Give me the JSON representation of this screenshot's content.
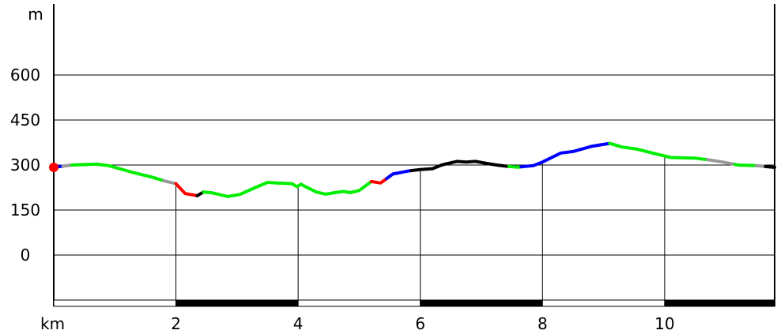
{
  "chart_data": {
    "type": "line",
    "title": "",
    "xlabel": "km",
    "ylabel": "m",
    "xlim": [
      0,
      11.8
    ],
    "ylim": [
      -160,
      800
    ],
    "grid": true,
    "x_ticks": [
      2,
      4,
      6,
      8,
      10
    ],
    "y_ticks": [
      0,
      150,
      300,
      450,
      600
    ],
    "x_tick_labels": [
      "2",
      "4",
      "6",
      "8",
      "10"
    ],
    "y_tick_labels": [
      "0",
      "150",
      "300",
      "450",
      "600"
    ],
    "start_marker_color": "#ff0000",
    "km_bar_colors": [
      "#ffffff",
      "#000000"
    ],
    "series": [
      {
        "values_x": [
          0,
          0.1,
          0.3,
          0.7,
          0.9,
          1.3,
          1.6,
          1.85,
          2.0,
          2.15,
          2.35,
          2.45,
          2.6,
          2.85,
          3.05,
          3.3,
          3.5,
          3.65,
          3.9,
          3.98,
          4.05,
          4.1,
          4.3,
          4.45,
          4.6,
          4.75,
          4.85,
          5.0,
          5.2,
          5.35,
          5.45,
          5.55,
          5.8,
          6.0,
          6.2,
          6.35,
          6.45,
          6.6,
          6.75,
          6.9,
          7.1,
          7.25,
          7.45,
          7.6,
          7.85,
          8.0,
          8.3,
          8.5,
          8.8,
          9.1,
          9.3,
          9.55,
          9.8,
          10.1,
          10.5,
          10.7,
          10.95,
          11.2,
          11.5,
          11.8
        ],
        "values_y": [
          292,
          295,
          300,
          303,
          298,
          275,
          260,
          245,
          238,
          205,
          198,
          210,
          207,
          195,
          202,
          225,
          242,
          240,
          238,
          228,
          236,
          230,
          210,
          203,
          208,
          212,
          208,
          215,
          245,
          240,
          255,
          270,
          280,
          285,
          288,
          300,
          305,
          312,
          310,
          312,
          305,
          300,
          295,
          293,
          298,
          310,
          340,
          345,
          362,
          372,
          360,
          353,
          340,
          325,
          323,
          318,
          310,
          300,
          298,
          292
        ]
      }
    ],
    "segments": [
      {
        "from": 0,
        "to": 0.15,
        "color": "#0000ff"
      },
      {
        "from": 0.15,
        "to": 0.3,
        "color": "#999999"
      },
      {
        "from": 0.3,
        "to": 1.8,
        "color": "#00ee00"
      },
      {
        "from": 1.8,
        "to": 2.0,
        "color": "#999999"
      },
      {
        "from": 2.0,
        "to": 2.35,
        "color": "#ff0000"
      },
      {
        "from": 2.35,
        "to": 2.45,
        "color": "#000000"
      },
      {
        "from": 2.45,
        "to": 5.2,
        "color": "#00ee00"
      },
      {
        "from": 5.2,
        "to": 5.45,
        "color": "#ff0000"
      },
      {
        "from": 5.45,
        "to": 5.85,
        "color": "#0000ff"
      },
      {
        "from": 5.85,
        "to": 7.45,
        "color": "#000000"
      },
      {
        "from": 7.45,
        "to": 7.65,
        "color": "#00ee00"
      },
      {
        "from": 7.65,
        "to": 9.1,
        "color": "#0000ff"
      },
      {
        "from": 9.1,
        "to": 10.7,
        "color": "#00ee00"
      },
      {
        "from": 10.7,
        "to": 11.15,
        "color": "#999999"
      },
      {
        "from": 11.15,
        "to": 11.5,
        "color": "#00ee00"
      },
      {
        "from": 11.5,
        "to": 11.65,
        "color": "#999999"
      },
      {
        "from": 11.65,
        "to": 11.8,
        "color": "#000000"
      }
    ]
  }
}
